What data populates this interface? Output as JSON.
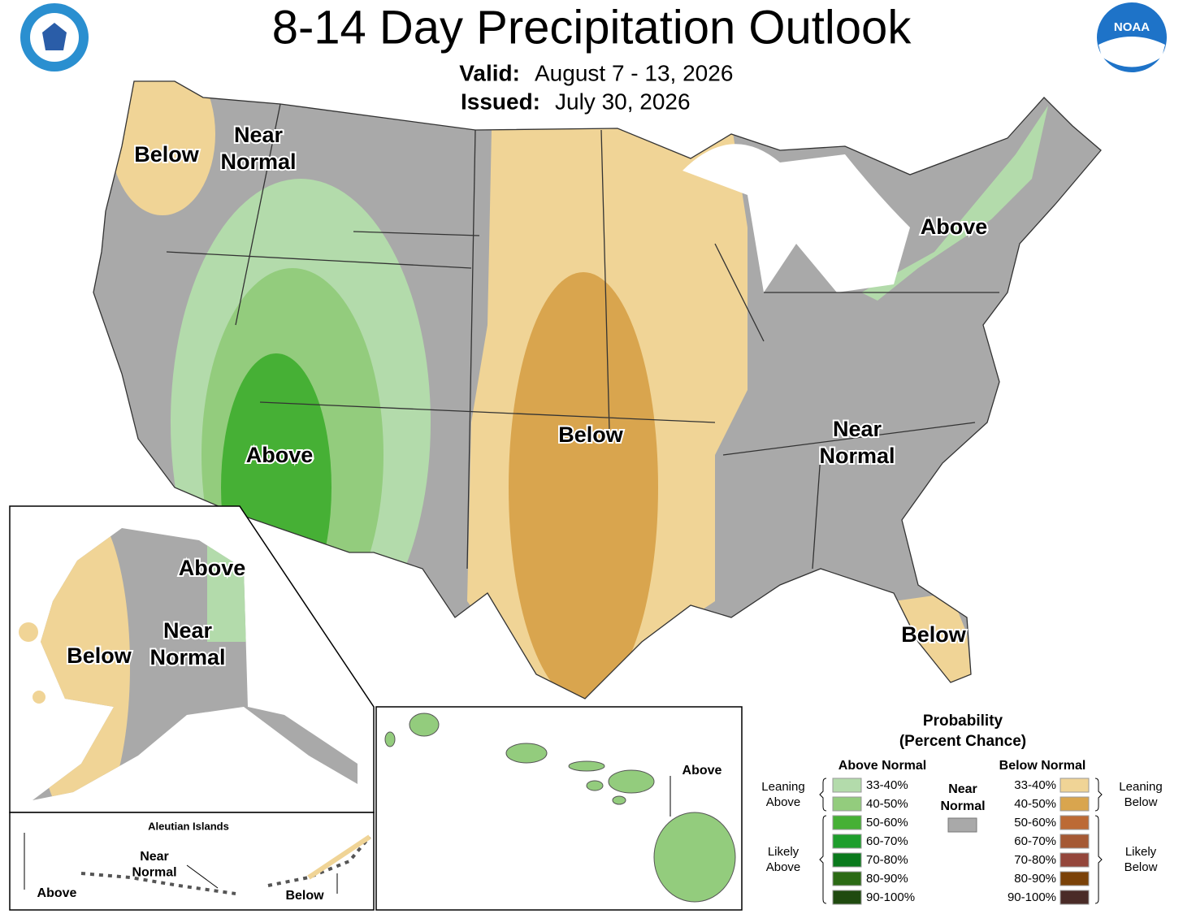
{
  "header": {
    "title": "8-14 Day Precipitation Outlook",
    "valid_label": "Valid:",
    "valid": "August 7 - 13, 2026",
    "issued_label": "Issued:",
    "issued": "July 30, 2026",
    "logo_text": "NOAA"
  },
  "conus_labels": [
    {
      "lines": [
        "Below"
      ]
    },
    {
      "lines": [
        "Near",
        "Normal"
      ]
    },
    {
      "lines": [
        "Above"
      ]
    },
    {
      "lines": [
        "Below"
      ]
    },
    {
      "lines": [
        "Above"
      ]
    },
    {
      "lines": [
        "Near",
        "Normal"
      ]
    },
    {
      "lines": [
        "Below"
      ]
    }
  ],
  "alaska_labels": [
    {
      "lines": [
        "Above"
      ]
    },
    {
      "lines": [
        "Near",
        "Normal"
      ]
    },
    {
      "lines": [
        "Below"
      ]
    }
  ],
  "aleutians": {
    "title": "Aleutian Islands",
    "labels": [
      {
        "lines": [
          "Near",
          "Normal"
        ]
      },
      {
        "lines": [
          "Above"
        ]
      },
      {
        "lines": [
          "Below"
        ]
      }
    ]
  },
  "hawaii_labels": [
    {
      "lines": [
        "Above"
      ]
    }
  ],
  "legend": {
    "title": [
      "Probability",
      "(Percent Chance)"
    ],
    "above_normal": {
      "heading": "Above Normal",
      "groups": [
        {
          "lines": [
            "Leaning",
            "Above"
          ]
        },
        {
          "lines": [
            "Likely",
            "Above"
          ]
        }
      ],
      "entries": [
        {
          "label": "33-40%",
          "color": "#b3dbab"
        },
        {
          "label": "40-50%",
          "color": "#93cc7d"
        },
        {
          "label": "50-60%",
          "color": "#46b035"
        },
        {
          "label": "60-70%",
          "color": "#1e9e2c"
        },
        {
          "label": "70-80%",
          "color": "#0a7a1c"
        },
        {
          "label": "80-90%",
          "color": "#2b6a14"
        },
        {
          "label": "90-100%",
          "color": "#1f4a0f"
        }
      ]
    },
    "near_normal": {
      "lines": [
        "Near",
        "Normal"
      ],
      "color": "#a9a9a9"
    },
    "below_normal": {
      "heading": "Below Normal",
      "groups": [
        {
          "lines": [
            "Leaning",
            "Below"
          ]
        },
        {
          "lines": [
            "Likely",
            "Below"
          ]
        }
      ],
      "entries": [
        {
          "label": "33-40%",
          "color": "#f0d496"
        },
        {
          "label": "40-50%",
          "color": "#d9a54e"
        },
        {
          "label": "50-60%",
          "color": "#bc6a35"
        },
        {
          "label": "60-70%",
          "color": "#a55934"
        },
        {
          "label": "70-80%",
          "color": "#94463b"
        },
        {
          "label": "80-90%",
          "color": "#7b4208"
        },
        {
          "label": "90-100%",
          "color": "#4a2b27"
        }
      ]
    }
  }
}
